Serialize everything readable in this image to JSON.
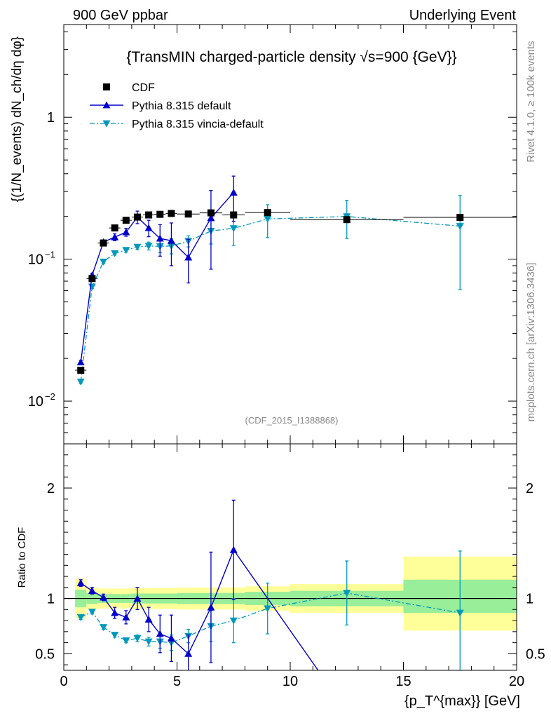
{
  "header": {
    "left": "900 GeV ppbar",
    "right": "Underlying Event"
  },
  "side_labels": {
    "rivet": "Rivet 4.1.0, ≥ 100k events",
    "mcplots": "mcplots.cern.ch [arXiv:1306.3436]"
  },
  "chart_data": [
    {
      "type": "scatter",
      "panel": "main",
      "title": "{TransMIN charged-particle density √s=900 {GeV}}",
      "ylabel": "{(1/N_events) dN_ch/dη dφ}",
      "yscale": "log",
      "ylim": [
        0.005,
        4.5
      ],
      "xlim": [
        0,
        20
      ],
      "yticks": [
        {
          "value": 0.01,
          "base": "10",
          "exp": "−2"
        },
        {
          "value": 0.1,
          "base": "10",
          "exp": "−1"
        },
        {
          "value": 1,
          "base": "1",
          "exp": ""
        }
      ],
      "watermark": "(CDF_2015_I1388868)",
      "legend_position": "top-left",
      "series": [
        {
          "name": "CDF",
          "style": "data",
          "color": "#000000",
          "x": [
            0.75,
            1.25,
            1.75,
            2.25,
            2.75,
            3.25,
            3.75,
            4.25,
            4.75,
            5.5,
            6.5,
            7.5,
            9.0,
            12.5,
            17.5
          ],
          "y": [
            0.0165,
            0.073,
            0.13,
            0.166,
            0.188,
            0.198,
            0.205,
            0.207,
            0.21,
            0.208,
            0.212,
            0.205,
            0.213,
            0.19,
            0.197
          ],
          "xerr": [
            0.25,
            0.25,
            0.25,
            0.25,
            0.25,
            0.25,
            0.25,
            0.25,
            0.25,
            0.5,
            0.5,
            0.5,
            1.0,
            2.5,
            2.5
          ]
        },
        {
          "name": "Pythia 8.315 default",
          "style": "solid",
          "marker": "triangle-up",
          "color": "#0000cc",
          "x": [
            0.75,
            1.25,
            1.75,
            2.25,
            2.75,
            3.25,
            3.75,
            4.25,
            4.75,
            5.5,
            6.5,
            7.5
          ],
          "y": [
            0.0188,
            0.077,
            0.132,
            0.143,
            0.155,
            0.198,
            0.166,
            0.14,
            0.135,
            0.103,
            0.195,
            0.295
          ],
          "yerr_low": [
            0.0005,
            0.002,
            0.003,
            0.008,
            0.01,
            0.02,
            0.022,
            0.035,
            0.045,
            0.035,
            0.11,
            0.11
          ],
          "yerr_high": [
            0.0005,
            0.002,
            0.003,
            0.008,
            0.01,
            0.02,
            0.022,
            0.035,
            0.045,
            0.035,
            0.11,
            0.09
          ]
        },
        {
          "name": "Pythia 8.315 vincia-default",
          "style": "dashdot",
          "marker": "triangle-down",
          "color": "#0099bb",
          "x": [
            0.75,
            1.25,
            1.75,
            2.25,
            2.75,
            3.25,
            3.75,
            4.25,
            4.75,
            5.5,
            6.5,
            7.5,
            9.0,
            12.5,
            17.5
          ],
          "y": [
            0.0137,
            0.064,
            0.096,
            0.11,
            0.116,
            0.122,
            0.124,
            0.123,
            0.124,
            0.134,
            0.158,
            0.165,
            0.192,
            0.2,
            0.171
          ],
          "yerr_low": [
            0.0004,
            0.002,
            0.003,
            0.003,
            0.004,
            0.005,
            0.008,
            0.012,
            0.015,
            0.012,
            0.03,
            0.04,
            0.05,
            0.06,
            0.11
          ],
          "yerr_high": [
            0.0004,
            0.002,
            0.003,
            0.003,
            0.004,
            0.005,
            0.008,
            0.012,
            0.015,
            0.012,
            0.03,
            0.04,
            0.05,
            0.06,
            0.11
          ]
        }
      ]
    },
    {
      "type": "scatter",
      "panel": "ratio",
      "ylabel": "Ratio to CDF",
      "xlabel": "{p_T^{max}} [GeV]",
      "xlim": [
        0,
        20
      ],
      "ylim": [
        0.35,
        2.4
      ],
      "yticks": [
        0.5,
        1,
        2
      ],
      "xticks": [
        0,
        5,
        10,
        15,
        20
      ],
      "bands": [
        {
          "x0": 0.5,
          "x1": 1.0,
          "stat_low": 0.92,
          "stat_high": 1.08,
          "tot_low": 0.82,
          "tot_high": 1.18
        },
        {
          "x0": 1.0,
          "x1": 1.5,
          "stat_low": 0.95,
          "stat_high": 1.05,
          "tot_low": 0.9,
          "tot_high": 1.1
        },
        {
          "x0": 1.5,
          "x1": 2.0,
          "stat_low": 0.96,
          "stat_high": 1.04,
          "tot_low": 0.91,
          "tot_high": 1.09
        },
        {
          "x0": 2.0,
          "x1": 2.5,
          "stat_low": 0.96,
          "stat_high": 1.04,
          "tot_low": 0.91,
          "tot_high": 1.09
        },
        {
          "x0": 2.5,
          "x1": 3.0,
          "stat_low": 0.96,
          "stat_high": 1.04,
          "tot_low": 0.91,
          "tot_high": 1.09
        },
        {
          "x0": 3.0,
          "x1": 5.0,
          "stat_low": 0.955,
          "stat_high": 1.045,
          "tot_low": 0.905,
          "tot_high": 1.095
        },
        {
          "x0": 5.0,
          "x1": 8.0,
          "stat_low": 0.95,
          "stat_high": 1.05,
          "tot_low": 0.9,
          "tot_high": 1.1
        },
        {
          "x0": 8.0,
          "x1": 10.0,
          "stat_low": 0.94,
          "stat_high": 1.06,
          "tot_low": 0.89,
          "tot_high": 1.11
        },
        {
          "x0": 10.0,
          "x1": 15.0,
          "stat_low": 0.93,
          "stat_high": 1.07,
          "tot_low": 0.87,
          "tot_high": 1.13
        },
        {
          "x0": 15.0,
          "x1": 20.0,
          "stat_low": 0.87,
          "stat_high": 1.17,
          "tot_low": 0.71,
          "tot_high": 1.38
        }
      ],
      "series": [
        {
          "name": "Pythia 8.315 default",
          "color": "#0000cc",
          "x": [
            0.75,
            1.25,
            1.75,
            2.25,
            2.75,
            3.25,
            3.75,
            4.25,
            4.75,
            5.5,
            6.5,
            7.5
          ],
          "y": [
            1.14,
            1.07,
            1.01,
            0.87,
            0.83,
            1.0,
            0.81,
            0.68,
            0.64,
            0.5,
            0.92,
            1.44
          ],
          "yerr": [
            0.03,
            0.03,
            0.03,
            0.05,
            0.06,
            0.1,
            0.11,
            0.17,
            0.21,
            0.17,
            0.5,
            0.45
          ],
          "tail_to": {
            "x": 11.3,
            "y": 0.33
          }
        },
        {
          "name": "Pythia 8.315 vincia-default",
          "color": "#0099bb",
          "x": [
            0.75,
            1.25,
            1.75,
            2.25,
            2.75,
            3.25,
            3.75,
            4.25,
            4.75,
            5.5,
            6.5,
            7.5,
            9.0,
            12.5,
            17.5
          ],
          "y": [
            0.83,
            0.88,
            0.74,
            0.67,
            0.62,
            0.64,
            0.61,
            0.61,
            0.6,
            0.66,
            0.75,
            0.8,
            0.91,
            1.05,
            0.87
          ],
          "yerr": [
            0.02,
            0.02,
            0.02,
            0.02,
            0.02,
            0.03,
            0.04,
            0.06,
            0.07,
            0.06,
            0.14,
            0.2,
            0.23,
            0.29,
            0.56
          ]
        }
      ]
    }
  ]
}
